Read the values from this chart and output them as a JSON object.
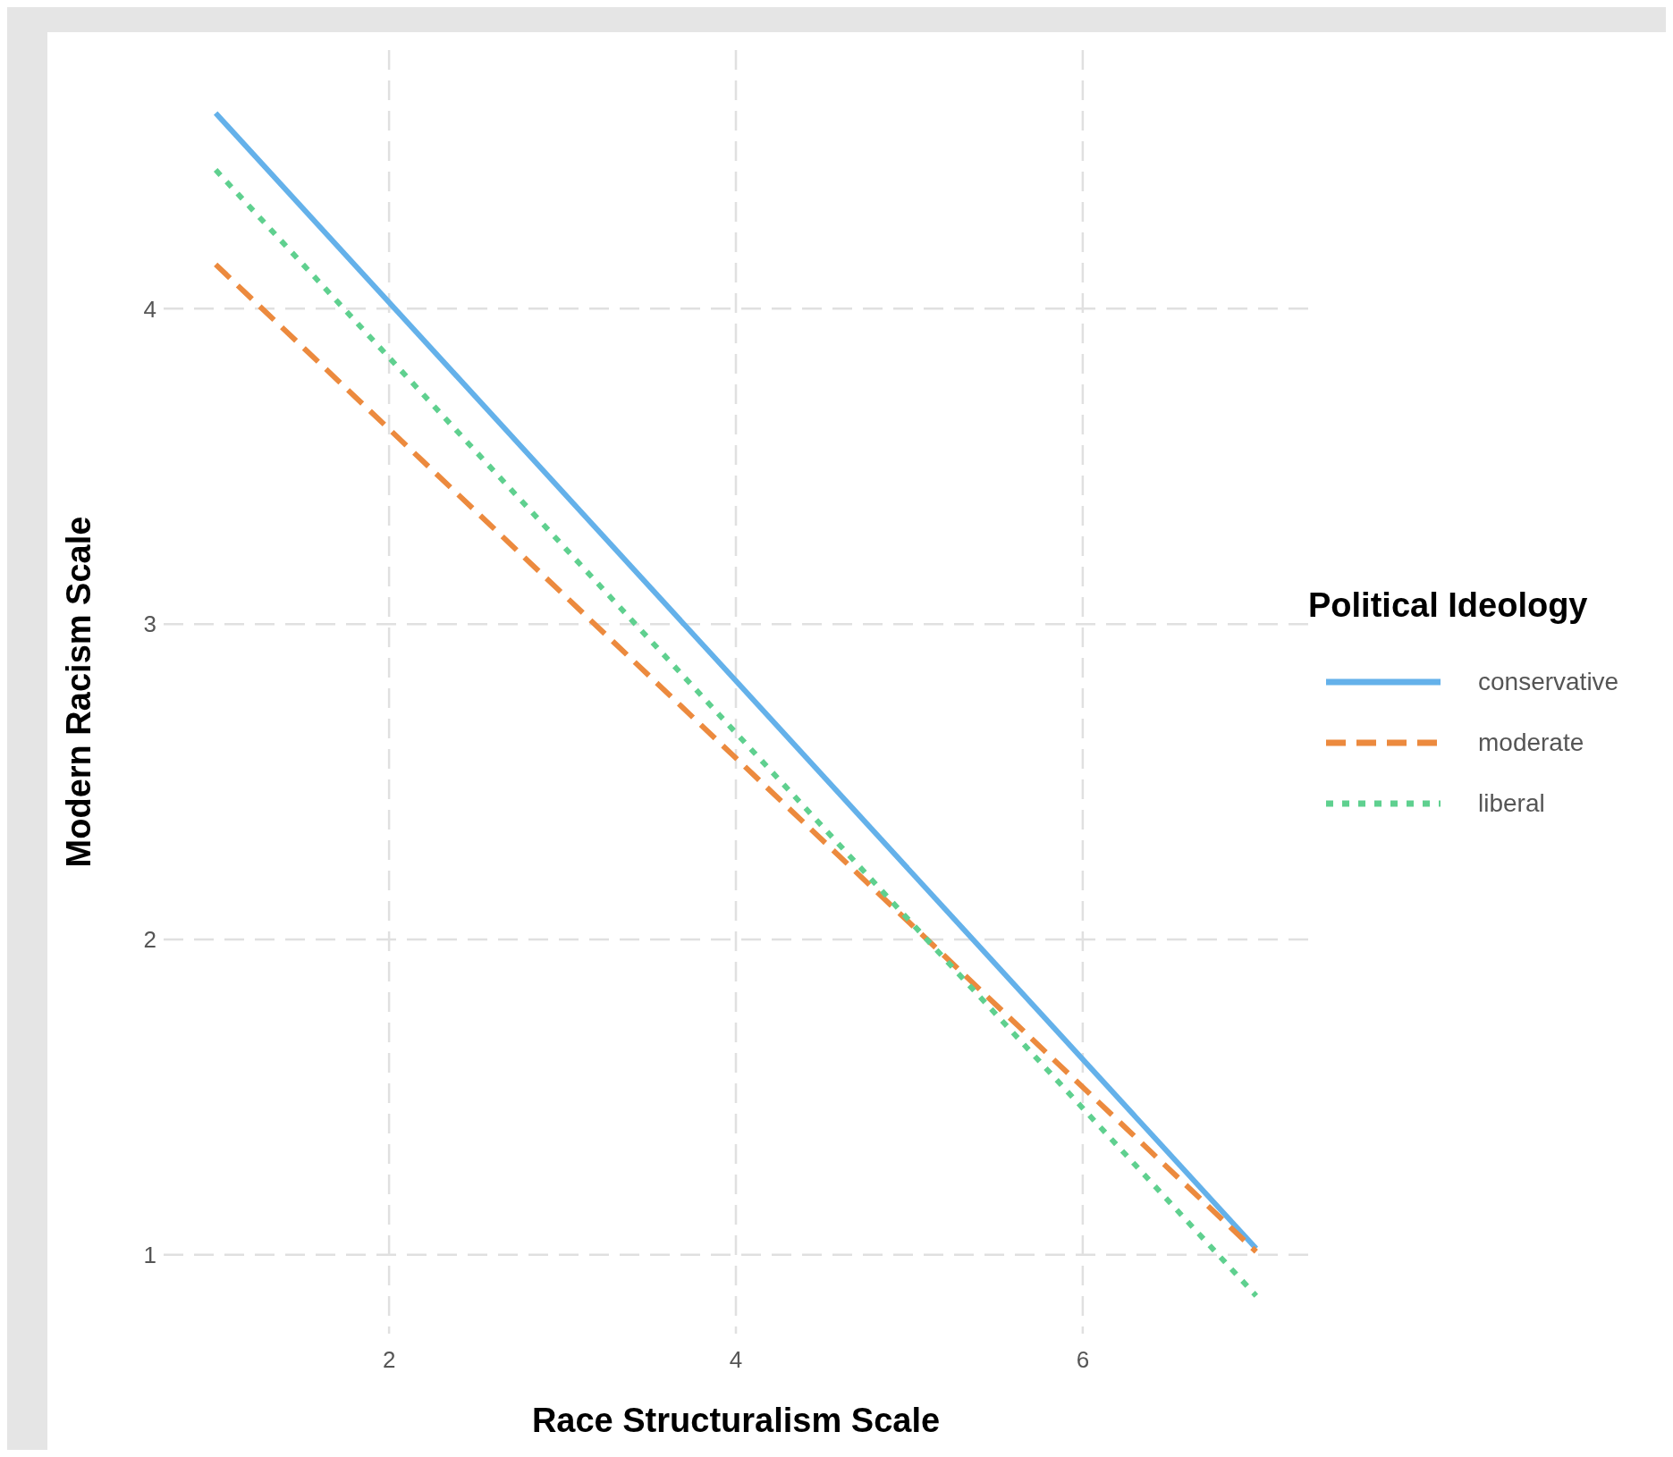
{
  "chart_data": {
    "type": "line",
    "xlabel": "Race Structuralism Scale",
    "ylabel": "Modern Racism Scale",
    "legend_title": "Political Ideology",
    "x": [
      1,
      7
    ],
    "series": [
      {
        "name": "conservative",
        "color": "#64b1ea",
        "line_style": "solid",
        "values": [
          4.62,
          1.02
        ]
      },
      {
        "name": "moderate",
        "color": "#ec8a3e",
        "line_style": "dashed",
        "values": [
          4.14,
          1.01
        ]
      },
      {
        "name": "liberal",
        "color": "#5fd08f",
        "line_style": "dotted",
        "values": [
          4.44,
          0.87
        ]
      }
    ],
    "xlim": [
      0.7,
      7.3
    ],
    "xticks": [
      2,
      4,
      6
    ],
    "ylim": [
      0.75,
      4.82
    ],
    "yticks": [
      1,
      2,
      3,
      4
    ],
    "grid": true,
    "legend": "right",
    "marker": "none"
  }
}
